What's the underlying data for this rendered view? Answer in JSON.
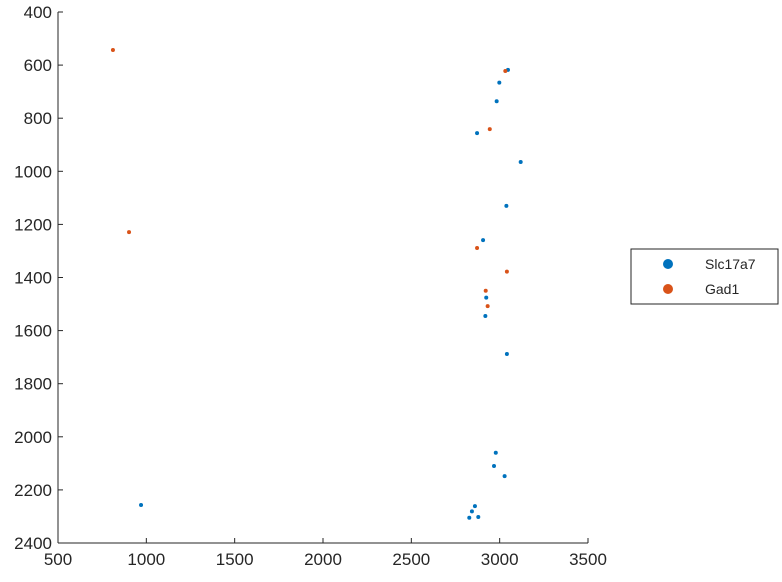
{
  "chart_data": {
    "type": "scatter",
    "title": "",
    "xlabel": "",
    "ylabel": "",
    "xlim": [
      500,
      3500
    ],
    "ylim": [
      400,
      2400
    ],
    "y_reversed": true,
    "grid": false,
    "legend_placement": "outside-right",
    "x_ticks": [
      "500",
      "1000",
      "1500",
      "2000",
      "2500",
      "3000",
      "3500"
    ],
    "y_ticks": [
      "400",
      "600",
      "800",
      "1000",
      "1200",
      "1400",
      "1600",
      "1800",
      "2000",
      "2200",
      "2400"
    ],
    "series": [
      {
        "name": "Slc17a7",
        "color": "#0072BD",
        "points": [
          [
            3047,
            618
          ],
          [
            2998,
            666
          ],
          [
            2983,
            736
          ],
          [
            2872,
            856
          ],
          [
            3119,
            965
          ],
          [
            3038,
            1130
          ],
          [
            2906,
            1259
          ],
          [
            2924,
            1476
          ],
          [
            2919,
            1545
          ],
          [
            3041,
            1688
          ],
          [
            2978,
            2060
          ],
          [
            2968,
            2110
          ],
          [
            3028,
            2148
          ],
          [
            2860,
            2261
          ],
          [
            2843,
            2281
          ],
          [
            2828,
            2305
          ],
          [
            2879,
            2302
          ],
          [
            970,
            2257
          ]
        ]
      },
      {
        "name": "Gad1",
        "color": "#D95319",
        "points": [
          [
            3032,
            622
          ],
          [
            2944,
            841
          ],
          [
            2872,
            1289
          ],
          [
            3041,
            1378
          ],
          [
            2921,
            1450
          ],
          [
            2932,
            1508
          ],
          [
            811,
            543
          ],
          [
            902,
            1229
          ]
        ]
      }
    ]
  }
}
